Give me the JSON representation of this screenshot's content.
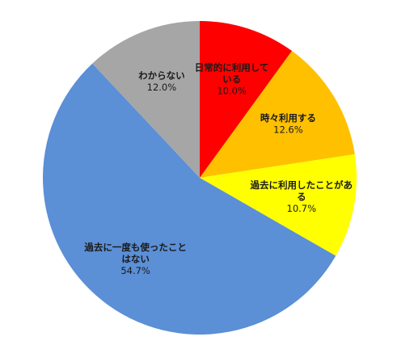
{
  "chart_data": {
    "type": "pie",
    "title": "",
    "start": "top",
    "direction": "clockwise",
    "slices": [
      {
        "label_lines": [
          "日常的に利用して",
          "いる"
        ],
        "value": 10.0,
        "value_label": "10.0%",
        "color": "#FF0000"
      },
      {
        "label_lines": [
          "時々利用する"
        ],
        "value": 12.6,
        "value_label": "12.6%",
        "color": "#FFC000"
      },
      {
        "label_lines": [
          "過去に利用したことがあ",
          "る"
        ],
        "value": 10.7,
        "value_label": "10.7%",
        "color": "#FFFF00"
      },
      {
        "label_lines": [
          "過去に一度も使ったこと",
          "はない"
        ],
        "value": 54.7,
        "value_label": "54.7%",
        "color": "#5B8FD6"
      },
      {
        "label_lines": [
          "わからない"
        ],
        "value": 12.0,
        "value_label": "12.0%",
        "color": "#A6A6A6"
      }
    ]
  }
}
